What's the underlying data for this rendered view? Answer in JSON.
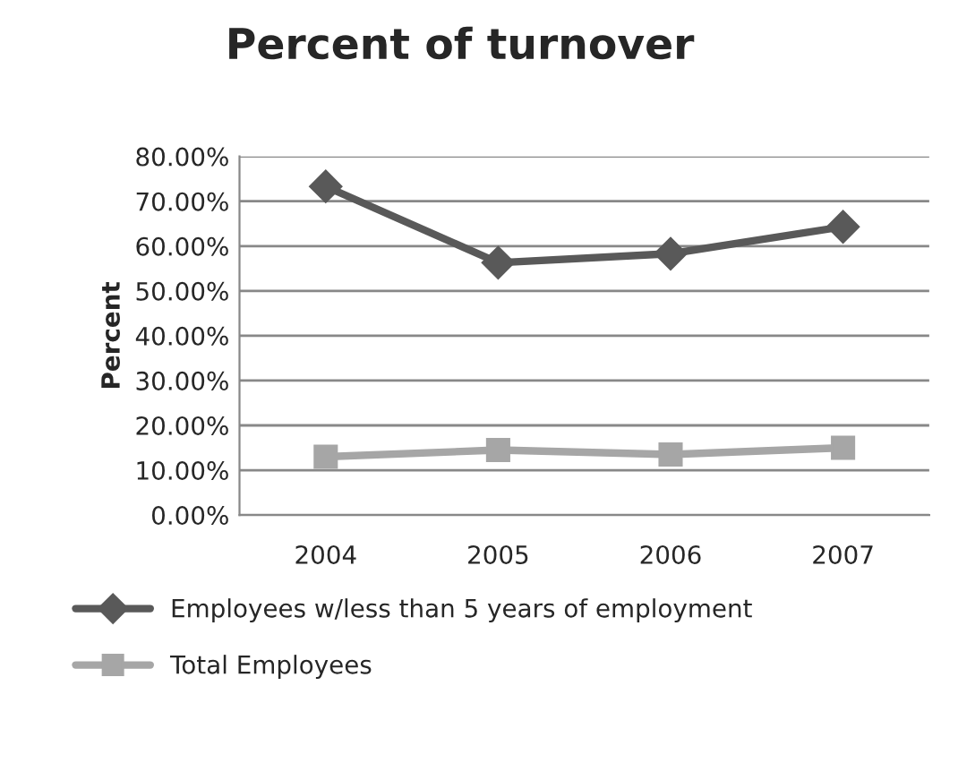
{
  "chart_data": {
    "type": "line",
    "title": "Percent of turnover",
    "ylabel": "Percent",
    "categories": [
      "2004",
      "2005",
      "2006",
      "2007"
    ],
    "series": [
      {
        "name": "Employees w/less than 5 years of employment",
        "color": "#595959",
        "values": [
          73.3,
          56.3,
          58.3,
          64.3
        ],
        "marker": "diamond"
      },
      {
        "name": "Total Employees",
        "color": "#a6a6a6",
        "values": [
          13,
          14.5,
          13.5,
          15
        ],
        "marker": "square"
      }
    ],
    "ylim": [
      0,
      80
    ],
    "yticks": [
      {
        "value": 0,
        "label": "0.00%"
      },
      {
        "value": 10,
        "label": "10.00%"
      },
      {
        "value": 20,
        "label": "20.00%"
      },
      {
        "value": 30,
        "label": "30.00%"
      },
      {
        "value": 40,
        "label": "40.00%"
      },
      {
        "value": 50,
        "label": "50.00%"
      },
      {
        "value": 60,
        "label": "60.00%"
      },
      {
        "value": 70,
        "label": "70.00%"
      },
      {
        "value": 80,
        "label": "80.00%"
      }
    ],
    "grid": "y",
    "legend": "bottom",
    "line_style": "solid"
  }
}
